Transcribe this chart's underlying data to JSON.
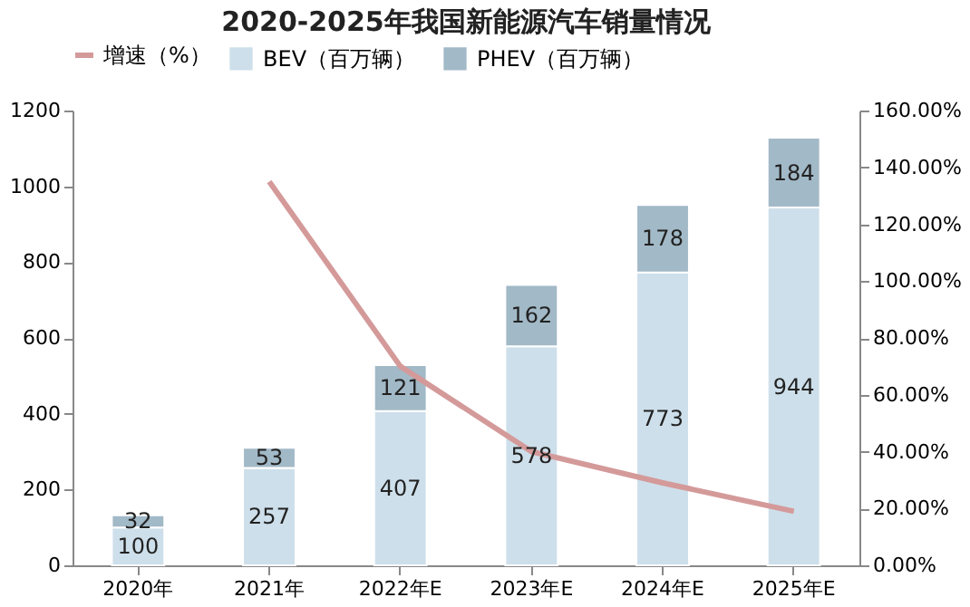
{
  "chart_data": {
    "type": "bar",
    "title": "2020-2025年我国新能源汽车销量情况",
    "categories": [
      "2020年",
      "2021年",
      "2022年E",
      "2023年E",
      "2024年E",
      "2025年E"
    ],
    "stacked": true,
    "legend": "top",
    "grid": false,
    "series": [
      {
        "name": "BEV（百万辆）",
        "color": "#cddfea",
        "values": [
          100,
          257,
          407,
          578,
          773,
          944
        ],
        "value_labels": [
          "100",
          "257",
          "407",
          "578",
          "773",
          "944"
        ]
      },
      {
        "name": "PHEV（百万辆）",
        "color": "#a2b9c7",
        "values": [
          32,
          53,
          121,
          162,
          178,
          184
        ],
        "value_labels": [
          "32",
          "53",
          "121",
          "162",
          "178",
          "184"
        ]
      },
      {
        "name": "增速（%）",
        "type": "line",
        "axis": "y2",
        "color": "#d49a9a",
        "values": [
          null,
          135,
          70,
          40,
          29,
          19
        ]
      }
    ],
    "ylim": [
      0,
      1200
    ],
    "yticks": [
      0,
      200,
      400,
      600,
      800,
      1000,
      1200
    ],
    "y2lim": [
      0,
      160
    ],
    "y2ticks": [
      {
        "value": 0,
        "label": "0.00%"
      },
      {
        "value": 20,
        "label": "20.00%"
      },
      {
        "value": 40,
        "label": "40.00%"
      },
      {
        "value": 60,
        "label": "60.00%"
      },
      {
        "value": 80,
        "label": "80.00%"
      },
      {
        "value": 100,
        "label": "100.00%"
      },
      {
        "value": 120,
        "label": "120.00%"
      },
      {
        "value": 140,
        "label": "140.00%"
      },
      {
        "value": 160,
        "label": "160.00%"
      }
    ]
  }
}
